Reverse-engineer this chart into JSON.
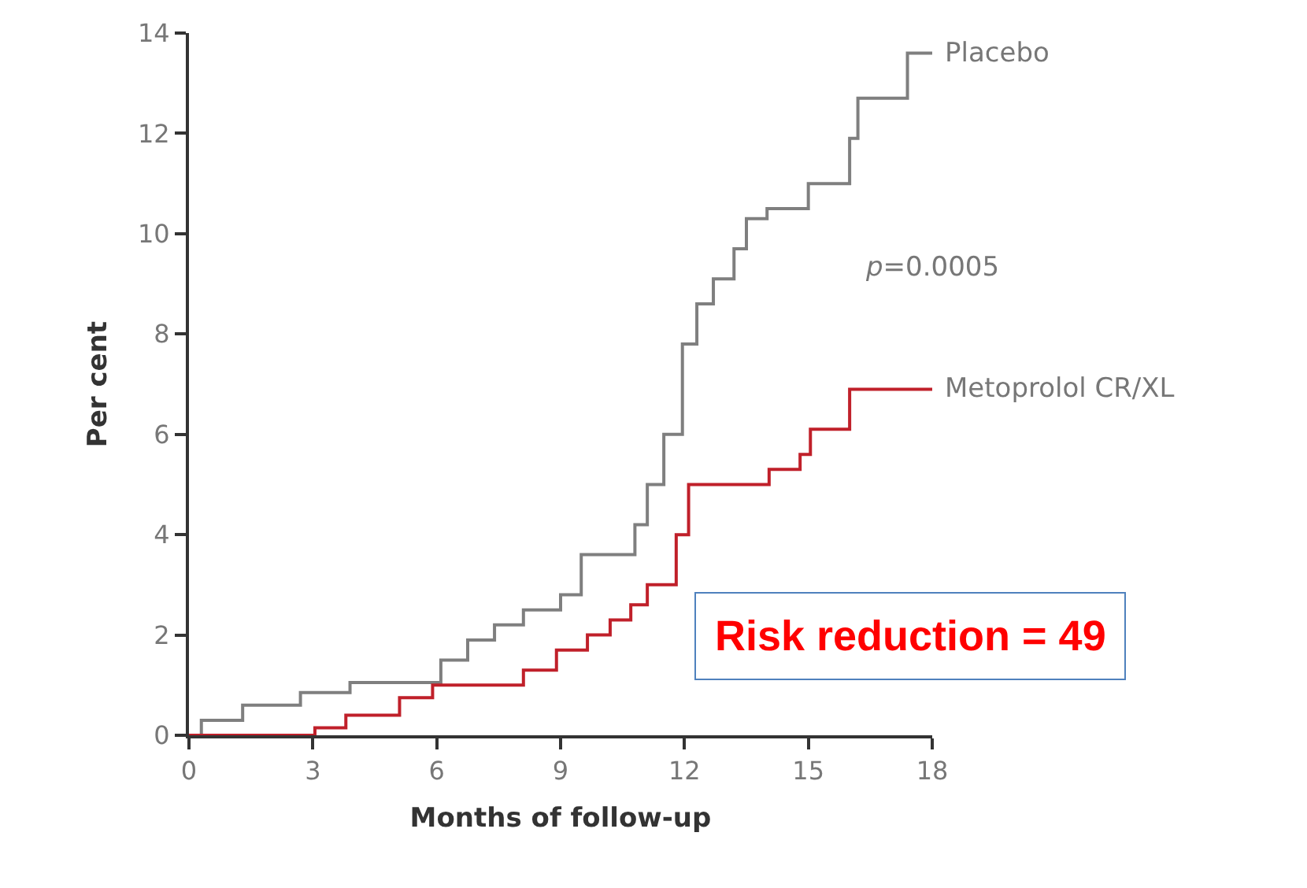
{
  "chart_data": {
    "type": "step",
    "xlabel": "Months of follow-up",
    "ylabel": "Per cent",
    "xlim": [
      0,
      18
    ],
    "ylim": [
      0,
      14
    ],
    "xticks": [
      0,
      3,
      6,
      9,
      12,
      15,
      18
    ],
    "yticks": [
      0,
      2,
      4,
      6,
      8,
      10,
      12,
      14
    ],
    "legend": false,
    "marker": "none",
    "line_style": "solid",
    "series": [
      {
        "name": "Placebo",
        "color": "#7f7f7f",
        "x": [
          0,
          0.3,
          1.3,
          2.7,
          3.9,
          5.3,
          6.1,
          6.75,
          7.4,
          8.1,
          9.0,
          9.5,
          10.4,
          10.8,
          11.1,
          11.5,
          11.95,
          12.3,
          12.7,
          13.2,
          13.5,
          14.0,
          15.0,
          16.0,
          16.2,
          17.4,
          18
        ],
        "values": [
          0,
          0.3,
          0.6,
          0.85,
          1.05,
          1.05,
          1.5,
          1.9,
          2.2,
          2.5,
          2.8,
          3.6,
          3.6,
          4.2,
          5.0,
          6.0,
          7.8,
          8.6,
          9.1,
          9.7,
          10.3,
          10.5,
          11.0,
          11.9,
          12.7,
          13.6,
          13.6
        ]
      },
      {
        "name": "Metoprolol CR/XL",
        "color": "#c0202a",
        "x": [
          0,
          2.2,
          3.05,
          3.8,
          5.1,
          5.9,
          7.6,
          8.1,
          8.9,
          9.65,
          10.2,
          10.7,
          11.1,
          11.8,
          12.1,
          14.05,
          14.8,
          15.05,
          16.0,
          18
        ],
        "values": [
          0,
          0,
          0.15,
          0.4,
          0.75,
          1.0,
          1.0,
          1.3,
          1.7,
          2.0,
          2.3,
          2.6,
          3.0,
          4.0,
          5.0,
          5.3,
          5.6,
          6.1,
          6.9,
          6.9
        ]
      }
    ],
    "annotations": [
      "p=0.0005",
      "Risk reduction = 49"
    ]
  }
}
